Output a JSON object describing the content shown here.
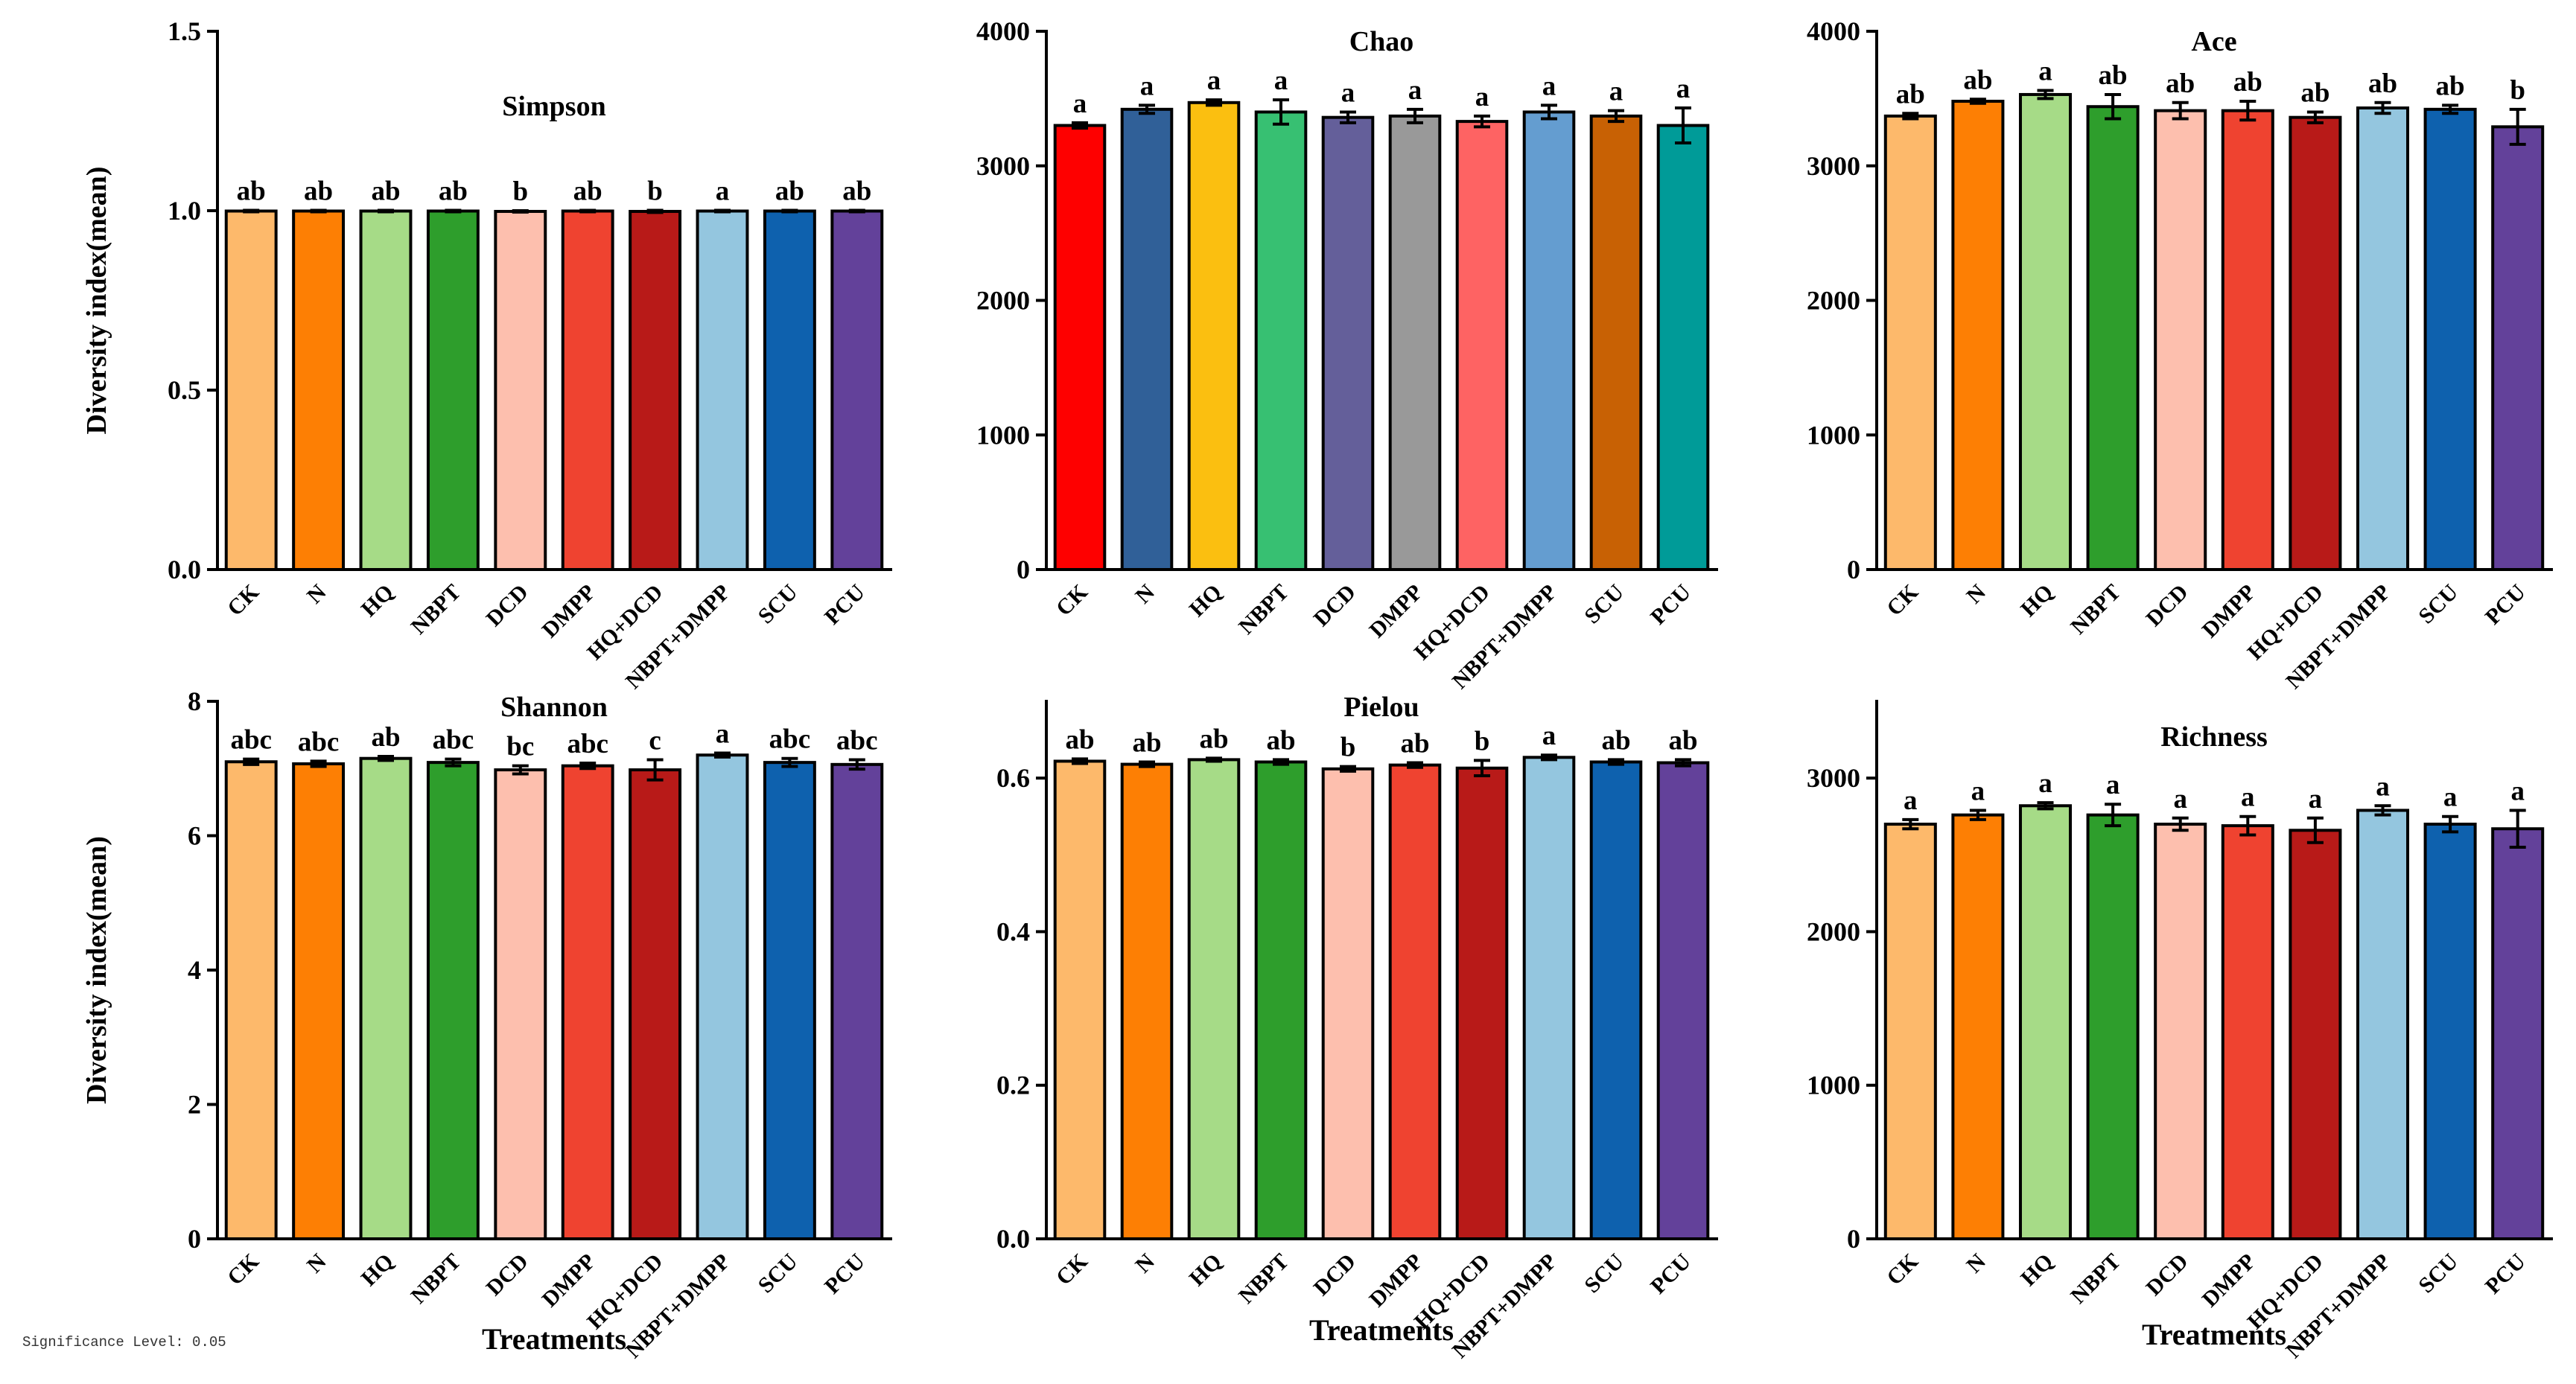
{
  "colors": {
    "axis": "#000000",
    "error_bar": "#000000",
    "palette_a": [
      "#fdb96b",
      "#fd7f04",
      "#a6db87",
      "#2e9e2c",
      "#fdbfae",
      "#ef4330",
      "#b81a18",
      "#94c6df",
      "#0e61ae",
      "#63419a"
    ],
    "palette_chao": [
      "#fe0000",
      "#306098",
      "#fbbf10",
      "#37c072",
      "#645f9a",
      "#999999",
      "#fe6363",
      "#649dd0",
      "#c86104",
      "#009b98"
    ]
  },
  "footnote": "Significance Level: 0.05",
  "chart_data": [
    {
      "type": "bar",
      "title": "Simpson",
      "ylabel": "Diversity index(mean)",
      "xlabel": "",
      "categories": [
        "CK",
        "N",
        "HQ",
        "NBPT",
        "DCD",
        "DMPP",
        "HQ+DCD",
        "NBPT+DMPP",
        "SCU",
        "PCU"
      ],
      "values": [
        0.999,
        0.999,
        0.999,
        0.999,
        0.998,
        0.999,
        0.998,
        0.999,
        0.999,
        0.999
      ],
      "errors": [
        0.002,
        0.002,
        0.002,
        0.002,
        0.002,
        0.002,
        0.003,
        0.002,
        0.002,
        0.002
      ],
      "significance": [
        "ab",
        "ab",
        "ab",
        "ab",
        "b",
        "ab",
        "b",
        "a",
        "ab",
        "ab"
      ],
      "ylim": [
        0,
        1.5
      ],
      "yticks": [
        "0.0",
        "0.5",
        "1.0",
        "1.5"
      ],
      "palette": "palette_a",
      "legend": "none",
      "grid": false
    },
    {
      "type": "bar",
      "title": "Chao",
      "ylabel": "",
      "xlabel": "",
      "categories": [
        "CK",
        "N",
        "HQ",
        "NBPT",
        "DCD",
        "DMPP",
        "HQ+DCD",
        "NBPT+DMPP",
        "SCU",
        "PCU"
      ],
      "values": [
        3300,
        3420,
        3470,
        3400,
        3360,
        3370,
        3330,
        3400,
        3370,
        3300
      ],
      "errors": [
        20,
        30,
        20,
        90,
        40,
        50,
        40,
        50,
        40,
        130
      ],
      "significance": [
        "a",
        "a",
        "a",
        "a",
        "a",
        "a",
        "a",
        "a",
        "a",
        "a"
      ],
      "ylim": [
        0,
        4000
      ],
      "yticks": [
        "0",
        "1000",
        "2000",
        "3000",
        "4000"
      ],
      "palette": "palette_chao",
      "legend": "none",
      "grid": false
    },
    {
      "type": "bar",
      "title": "Ace",
      "ylabel": "",
      "xlabel": "",
      "categories": [
        "CK",
        "N",
        "HQ",
        "NBPT",
        "DCD",
        "DMPP",
        "HQ+DCD",
        "NBPT+DMPP",
        "SCU",
        "PCU"
      ],
      "values": [
        3370,
        3480,
        3530,
        3440,
        3410,
        3410,
        3360,
        3430,
        3420,
        3290
      ],
      "errors": [
        20,
        15,
        30,
        90,
        60,
        70,
        40,
        40,
        30,
        130
      ],
      "significance": [
        "ab",
        "ab",
        "a",
        "ab",
        "ab",
        "ab",
        "ab",
        "ab",
        "ab",
        "b"
      ],
      "ylim": [
        0,
        4000
      ],
      "yticks": [
        "0",
        "1000",
        "2000",
        "3000",
        "4000"
      ],
      "palette": "palette_a",
      "legend": "none",
      "grid": false
    },
    {
      "type": "bar",
      "title": "Shannon",
      "ylabel": "Diversity index(mean)",
      "xlabel": "Treatments",
      "categories": [
        "CK",
        "N",
        "HQ",
        "NBPT",
        "DCD",
        "DMPP",
        "HQ+DCD",
        "NBPT+DMPP",
        "SCU",
        "PCU"
      ],
      "values": [
        7.1,
        7.07,
        7.15,
        7.09,
        6.98,
        7.04,
        6.98,
        7.2,
        7.09,
        7.06
      ],
      "errors": [
        0.04,
        0.04,
        0.03,
        0.05,
        0.06,
        0.04,
        0.15,
        0.03,
        0.06,
        0.07
      ],
      "significance": [
        "abc",
        "abc",
        "ab",
        "abc",
        "bc",
        "abc",
        "c",
        "a",
        "abc",
        "abc"
      ],
      "ylim": [
        0,
        8
      ],
      "yticks": [
        "0",
        "2",
        "4",
        "6",
        "8"
      ],
      "palette": "palette_a",
      "legend": "none",
      "grid": false
    },
    {
      "type": "bar",
      "title": "Pielou",
      "ylabel": "",
      "xlabel": "Treatments",
      "categories": [
        "CK",
        "N",
        "HQ",
        "NBPT",
        "DCD",
        "DMPP",
        "HQ+DCD",
        "NBPT+DMPP",
        "SCU",
        "PCU"
      ],
      "values": [
        0.622,
        0.618,
        0.624,
        0.621,
        0.612,
        0.617,
        0.613,
        0.627,
        0.621,
        0.62
      ],
      "errors": [
        0.003,
        0.003,
        0.002,
        0.003,
        0.003,
        0.003,
        0.01,
        0.003,
        0.003,
        0.004
      ],
      "significance": [
        "ab",
        "ab",
        "ab",
        "ab",
        "b",
        "ab",
        "b",
        "a",
        "ab",
        "ab"
      ],
      "ylim": [
        0,
        0.7
      ],
      "yticks": [
        "0.0",
        "0.2",
        "0.4",
        "0.6"
      ],
      "palette": "palette_a",
      "legend": "none",
      "grid": false
    },
    {
      "type": "bar",
      "title": "Richness",
      "ylabel": "",
      "xlabel": "Treatments",
      "categories": [
        "CK",
        "N",
        "HQ",
        "NBPT",
        "DCD",
        "DMPP",
        "HQ+DCD",
        "NBPT+DMPP",
        "SCU",
        "PCU"
      ],
      "values": [
        2700,
        2760,
        2820,
        2760,
        2700,
        2690,
        2660,
        2790,
        2700,
        2670
      ],
      "errors": [
        30,
        30,
        20,
        70,
        40,
        60,
        80,
        30,
        50,
        120
      ],
      "significance": [
        "a",
        "a",
        "a",
        "a",
        "a",
        "a",
        "a",
        "a",
        "a",
        "a"
      ],
      "ylim": [
        0,
        3500
      ],
      "yticks": [
        "0",
        "1000",
        "2000",
        "3000"
      ],
      "palette": "palette_a",
      "legend": "none",
      "grid": false
    }
  ]
}
